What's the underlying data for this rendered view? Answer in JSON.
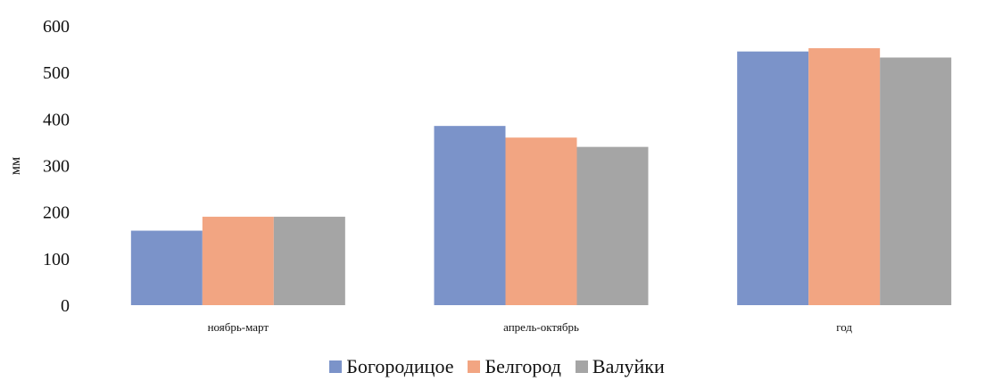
{
  "chart_data": {
    "type": "bar",
    "title": "",
    "xlabel": "",
    "ylabel": "мм",
    "ylim": [
      0,
      600
    ],
    "yticks": [
      0,
      100,
      200,
      300,
      400,
      500,
      600
    ],
    "categories": [
      "ноябрь-март",
      "апрель-октябрь",
      "год"
    ],
    "series": [
      {
        "name": "Богородицое",
        "color": "#7b93c9",
        "values": [
          160,
          385,
          545
        ]
      },
      {
        "name": "Белгород",
        "color": "#f2a582",
        "values": [
          190,
          360,
          552
        ]
      },
      {
        "name": "Валуйки",
        "color": "#a5a5a5",
        "values": [
          190,
          340,
          532
        ]
      }
    ],
    "grid": false,
    "legend_position": "bottom"
  }
}
